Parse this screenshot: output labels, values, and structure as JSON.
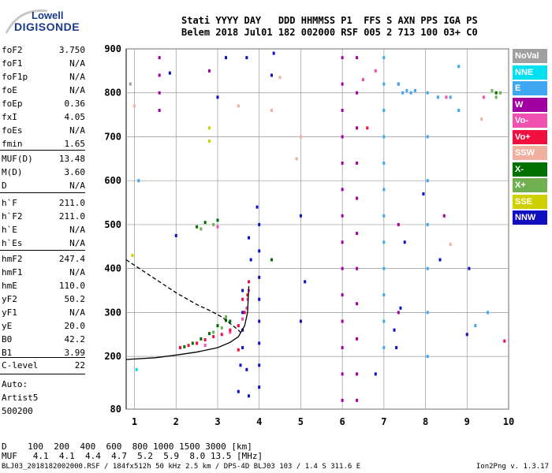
{
  "logo": {
    "line1": "Lowell",
    "line2": "DIGISONDE"
  },
  "header": {
    "row1": "Stati YYYY DAY   DDD HHMMSS P1  FFS S AXN PPS IGA PS",
    "row2": "Belem 2018 Jul01 182 002000 RSF 005 2 713 100 03+ C0"
  },
  "params1": [
    {
      "name": "foF2",
      "value": "3.750"
    },
    {
      "name": "foF1",
      "value": "N/A"
    },
    {
      "name": "foF1p",
      "value": "N/A"
    },
    {
      "name": "foE",
      "value": "N/A"
    },
    {
      "name": "foEp",
      "value": "0.36"
    },
    {
      "name": "fxI",
      "value": "4.05"
    },
    {
      "name": "foEs",
      "value": "N/A"
    },
    {
      "name": "fmin",
      "value": "1.65"
    }
  ],
  "params2": [
    {
      "name": "MUF(D)",
      "value": "13.48"
    },
    {
      "name": "M(D)",
      "value": "3.60"
    },
    {
      "name": "D",
      "value": "N/A"
    }
  ],
  "params3": [
    {
      "name": "h`F",
      "value": "211.0"
    },
    {
      "name": "h`F2",
      "value": "211.0"
    },
    {
      "name": "h`E",
      "value": "N/A"
    },
    {
      "name": "h`Es",
      "value": "N/A"
    }
  ],
  "params4": [
    {
      "name": "hmF2",
      "value": "247.4"
    },
    {
      "name": "hmF1",
      "value": "N/A"
    },
    {
      "name": "hmE",
      "value": "110.0"
    },
    {
      "name": "yF2",
      "value": "50.2"
    },
    {
      "name": "yF1",
      "value": "N/A"
    },
    {
      "name": "yE",
      "value": "20.0"
    },
    {
      "name": "B0",
      "value": "42.2"
    },
    {
      "name": "B1",
      "value": "3.99"
    }
  ],
  "clevel": {
    "name": "C-level",
    "value": "22"
  },
  "auto": {
    "line1": "Auto:",
    "line2": "Artist5",
    "line3": "500200"
  },
  "legend": [
    {
      "label": "NoVal",
      "color": "#a0a0a0"
    },
    {
      "label": "NNE",
      "color": "#00e0f0"
    },
    {
      "label": "E",
      "color": "#40a8f0"
    },
    {
      "label": "W",
      "color": "#a000a0"
    },
    {
      "label": "Vo-",
      "color": "#f050b0"
    },
    {
      "label": "Vo+",
      "color": "#f01040"
    },
    {
      "label": "SSW",
      "color": "#f0b0a0"
    },
    {
      "label": "X-",
      "color": "#007000"
    },
    {
      "label": "X+",
      "color": "#70b050"
    },
    {
      "label": "SSE",
      "color": "#d0d000"
    },
    {
      "label": "NNW",
      "color": "#1010c0"
    }
  ],
  "bottom": {
    "row1": "D    100  200  400  600  800 1000 1500 3000 [km]",
    "row2": "MUF   4.1  4.1  4.4  4.7  5.2  5.9  8.0 13.5 [MHz]"
  },
  "footer": {
    "left": "BLJ03_2018182002000.RSF / 184fx512h 50 kHz 2.5 km / DPS-4D BLJ03 103 / 1.4 S 311.6 E",
    "right": "Ion2Png v. 1.3.17"
  },
  "chart_data": {
    "type": "scatter",
    "title": "",
    "xlabel": "",
    "ylabel": "",
    "xlim": [
      0.8,
      10
    ],
    "ylim": [
      80,
      900
    ],
    "x_ticks": [
      1,
      2,
      3,
      4,
      5,
      6,
      7,
      8,
      9,
      10
    ],
    "y_ticks": [
      80,
      200,
      300,
      400,
      500,
      600,
      700,
      800,
      900
    ],
    "grid": true,
    "legend_position": "right",
    "series": [
      {
        "name": "W",
        "color": "#a000a0",
        "points": [
          [
            6.0,
            880
          ],
          [
            6.0,
            820
          ],
          [
            6.0,
            760
          ],
          [
            6.0,
            700
          ],
          [
            6.0,
            640
          ],
          [
            6.0,
            580
          ],
          [
            6.0,
            520
          ],
          [
            6.0,
            460
          ],
          [
            6.0,
            400
          ],
          [
            6.0,
            340
          ],
          [
            6.0,
            280
          ],
          [
            6.0,
            220
          ],
          [
            6.0,
            160
          ],
          [
            6.0,
            100
          ],
          [
            6.35,
            880
          ],
          [
            6.35,
            800
          ],
          [
            6.35,
            720
          ],
          [
            6.35,
            640
          ],
          [
            6.35,
            560
          ],
          [
            6.35,
            480
          ],
          [
            6.35,
            400
          ],
          [
            6.35,
            320
          ],
          [
            6.35,
            240
          ],
          [
            6.35,
            160
          ],
          [
            6.35,
            100
          ],
          [
            1.6,
            880
          ],
          [
            1.6,
            840
          ],
          [
            1.6,
            800
          ],
          [
            1.6,
            760
          ],
          [
            7.35,
            820
          ],
          [
            7.35,
            500
          ],
          [
            7.35,
            300
          ],
          [
            2.8,
            850
          ],
          [
            8.45,
            520
          ]
        ]
      },
      {
        "name": "E",
        "color": "#40a8f0",
        "points": [
          [
            7.0,
            880
          ],
          [
            7.0,
            820
          ],
          [
            7.0,
            760
          ],
          [
            7.0,
            700
          ],
          [
            7.0,
            640
          ],
          [
            7.0,
            580
          ],
          [
            7.0,
            520
          ],
          [
            7.0,
            460
          ],
          [
            7.0,
            400
          ],
          [
            7.0,
            340
          ],
          [
            7.0,
            280
          ],
          [
            7.0,
            220
          ],
          [
            7.45,
            800
          ],
          [
            7.55,
            805
          ],
          [
            7.65,
            800
          ],
          [
            7.75,
            805
          ],
          [
            7.35,
            820
          ],
          [
            8.05,
            800
          ],
          [
            8.05,
            700
          ],
          [
            8.05,
            600
          ],
          [
            8.05,
            500
          ],
          [
            8.05,
            400
          ],
          [
            8.05,
            300
          ],
          [
            8.05,
            200
          ],
          [
            8.8,
            860
          ],
          [
            8.8,
            760
          ],
          [
            8.6,
            790
          ],
          [
            8.3,
            790
          ],
          [
            9.5,
            300
          ],
          [
            9.2,
            270
          ],
          [
            1.1,
            600
          ]
        ]
      },
      {
        "name": "NNW",
        "color": "#1010c0",
        "points": [
          [
            3.6,
            220
          ],
          [
            3.6,
            260
          ],
          [
            3.6,
            300
          ],
          [
            3.6,
            350
          ],
          [
            3.55,
            180
          ],
          [
            3.5,
            120
          ],
          [
            4.0,
            500
          ],
          [
            4.0,
            440
          ],
          [
            4.0,
            380
          ],
          [
            4.0,
            330
          ],
          [
            4.0,
            280
          ],
          [
            4.0,
            230
          ],
          [
            4.0,
            180
          ],
          [
            4.0,
            130
          ],
          [
            3.7,
            170
          ],
          [
            3.75,
            110
          ],
          [
            4.35,
            890
          ],
          [
            3.7,
            880
          ],
          [
            3.2,
            880
          ],
          [
            3.75,
            470
          ],
          [
            3.8,
            420
          ],
          [
            3.95,
            540
          ],
          [
            4.3,
            840
          ],
          [
            7.95,
            570
          ],
          [
            7.5,
            460
          ],
          [
            5.0,
            520
          ],
          [
            5.0,
            280
          ],
          [
            5.1,
            370
          ],
          [
            6.8,
            160
          ],
          [
            7.3,
            220
          ],
          [
            7.25,
            260
          ],
          [
            7.4,
            310
          ],
          [
            2.0,
            475
          ],
          [
            3.0,
            790
          ],
          [
            1.85,
            845
          ],
          [
            8.35,
            420
          ],
          [
            9.05,
            400
          ],
          [
            9.0,
            250
          ]
        ]
      },
      {
        "name": "X-",
        "color": "#007000",
        "points": [
          [
            2.2,
            222
          ],
          [
            2.4,
            230
          ],
          [
            2.6,
            240
          ],
          [
            2.8,
            252
          ],
          [
            3.0,
            270
          ],
          [
            3.2,
            282
          ],
          [
            3.3,
            280
          ],
          [
            2.5,
            495
          ],
          [
            2.7,
            505
          ],
          [
            3.0,
            510
          ],
          [
            4.3,
            420
          ],
          [
            9.7,
            800
          ]
        ]
      },
      {
        "name": "X+",
        "color": "#70b050",
        "points": [
          [
            2.9,
            255
          ],
          [
            3.1,
            265
          ],
          [
            3.2,
            290
          ],
          [
            2.6,
            490
          ],
          [
            2.9,
            500
          ],
          [
            9.8,
            800
          ],
          [
            9.7,
            790
          ],
          [
            9.6,
            805
          ]
        ]
      },
      {
        "name": "Vo-",
        "color": "#f050b0",
        "points": [
          [
            3.3,
            255
          ],
          [
            3.5,
            270
          ],
          [
            3.6,
            285
          ],
          [
            3.7,
            310
          ],
          [
            3.75,
            350
          ],
          [
            3.72,
            330
          ],
          [
            3.0,
            495
          ],
          [
            2.7,
            225
          ],
          [
            2.5,
            230
          ],
          [
            9.4,
            790
          ],
          [
            8.5,
            790
          ],
          [
            6.5,
            830
          ],
          [
            6.8,
            850
          ]
        ]
      },
      {
        "name": "Vo+",
        "color": "#f01040",
        "points": [
          [
            2.1,
            220
          ],
          [
            2.3,
            225
          ],
          [
            2.5,
            230
          ],
          [
            2.7,
            238
          ],
          [
            2.9,
            245
          ],
          [
            3.1,
            250
          ],
          [
            3.3,
            260
          ],
          [
            3.5,
            270
          ],
          [
            3.65,
            300
          ],
          [
            3.72,
            340
          ],
          [
            3.75,
            370
          ],
          [
            3.6,
            330
          ],
          [
            3.5,
            215
          ],
          [
            9.9,
            235
          ],
          [
            6.6,
            720
          ]
        ]
      },
      {
        "name": "SSW",
        "color": "#f0b0a0",
        "points": [
          [
            4.3,
            760
          ],
          [
            4.5,
            835
          ],
          [
            4.9,
            650
          ],
          [
            5.0,
            700
          ],
          [
            8.6,
            455
          ],
          [
            3.5,
            770
          ],
          [
            1.0,
            770
          ],
          [
            9.35,
            740
          ]
        ]
      },
      {
        "name": "SSE",
        "color": "#d0d000",
        "points": [
          [
            2.8,
            690
          ],
          [
            2.8,
            720
          ],
          [
            0.95,
            430
          ]
        ]
      },
      {
        "name": "NNE",
        "color": "#00e0f0",
        "points": [
          [
            1.05,
            170
          ]
        ]
      },
      {
        "name": "NoVal",
        "color": "#a0a0a0",
        "points": [
          [
            0.9,
            820
          ]
        ]
      }
    ],
    "profile_solid": {
      "x": [
        0.8,
        1.5,
        2.0,
        2.5,
        3.0,
        3.3,
        3.5,
        3.65,
        3.72,
        3.75
      ],
      "y": [
        193,
        197,
        203,
        210,
        220,
        232,
        245,
        270,
        300,
        360
      ]
    },
    "profile_dashed": {
      "x": [
        0.8,
        1.2,
        1.6,
        2.0,
        2.5,
        2.8,
        3.1,
        3.3,
        3.5,
        3.6
      ],
      "y": [
        420,
        395,
        370,
        345,
        318,
        305,
        290,
        275,
        260,
        250
      ]
    }
  }
}
